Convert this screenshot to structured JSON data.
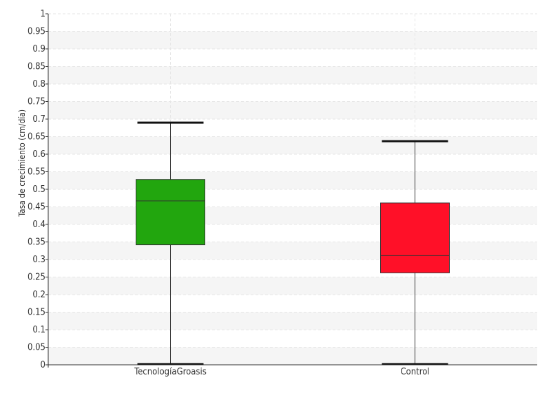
{
  "chart_data": {
    "type": "boxplot",
    "title": "",
    "xlabel": "",
    "ylabel": "Tasa de crecimiento (cm/día)",
    "ylim": [
      0,
      1
    ],
    "yticks": [
      {
        "value": 0,
        "label": "0"
      },
      {
        "value": 0.05,
        "label": "0.05"
      },
      {
        "value": 0.1,
        "label": "0.1"
      },
      {
        "value": 0.15,
        "label": "0.15"
      },
      {
        "value": 0.2,
        "label": "0.2"
      },
      {
        "value": 0.25,
        "label": "0.25"
      },
      {
        "value": 0.3,
        "label": "0.3"
      },
      {
        "value": 0.35,
        "label": "0.35"
      },
      {
        "value": 0.4,
        "label": "0.4"
      },
      {
        "value": 0.45,
        "label": "0.45"
      },
      {
        "value": 0.5,
        "label": "0.5"
      },
      {
        "value": 0.55,
        "label": "0.55"
      },
      {
        "value": 0.6,
        "label": "0.6"
      },
      {
        "value": 0.65,
        "label": "0.65"
      },
      {
        "value": 0.7,
        "label": "0.7"
      },
      {
        "value": 0.75,
        "label": "0.75"
      },
      {
        "value": 0.8,
        "label": "0.8"
      },
      {
        "value": 0.85,
        "label": "0.85"
      },
      {
        "value": 0.9,
        "label": "0.9"
      },
      {
        "value": 0.95,
        "label": "0.95"
      },
      {
        "value": 1,
        "label": "1"
      }
    ],
    "grid": true,
    "categories": [
      "TecnologíaGroasis",
      "Control"
    ],
    "boxes": [
      {
        "category": "TecnologíaGroasis",
        "min": 0.002,
        "q1": 0.342,
        "median": 0.467,
        "q3": 0.528,
        "max": 0.69,
        "color": "#22a60e"
      },
      {
        "category": "Control",
        "min": 0.002,
        "q1": 0.262,
        "median": 0.311,
        "q3": 0.461,
        "max": 0.637,
        "color": "#ff1028"
      }
    ]
  }
}
